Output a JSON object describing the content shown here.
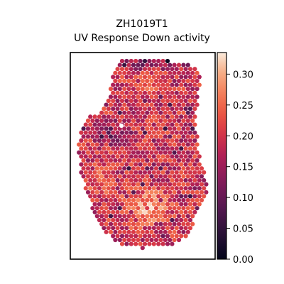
{
  "chart_data": {
    "type": "heatmap",
    "title_lines": [
      "ZH1019T1",
      "UV Response Down activity"
    ],
    "xlabel": "",
    "ylabel": "",
    "colorbar": {
      "colormap": "rocket",
      "range": [
        0.0,
        0.335
      ],
      "ticks": [
        0.0,
        0.05,
        0.1,
        0.15,
        0.2,
        0.25,
        0.3
      ],
      "tick_labels": [
        "0.00",
        "0.05",
        "0.10",
        "0.15",
        "0.20",
        "0.25",
        "0.30"
      ]
    },
    "grid": false,
    "spots": {
      "shape": "hexagonal spatial spot grid",
      "approximate_count": 1050,
      "typical_value": 0.19,
      "value_range": [
        0.0,
        0.33
      ],
      "high_value_region": "lower-center",
      "low_value_region": "top rim and upper-left"
    }
  }
}
